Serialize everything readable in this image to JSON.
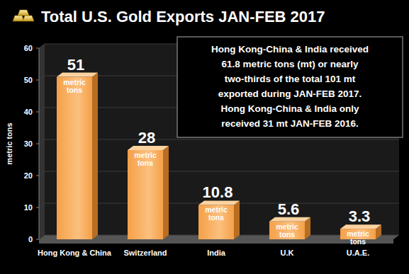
{
  "chart_data": {
    "type": "bar",
    "title": "Total U.S. Gold Exports JAN-FEB 2017",
    "y_label": "metric tons",
    "categories": [
      "Hong Kong & China",
      "Switzerland",
      "India",
      "U.K",
      "U.A.E."
    ],
    "values": [
      51,
      28,
      10.8,
      5.6,
      3.3
    ],
    "data_label_unit": "metric tons",
    "color": "#f5a048",
    "ylim": [
      0,
      60
    ],
    "yticks": [
      0,
      10,
      20,
      30,
      40,
      50,
      60
    ],
    "grid": true,
    "data_labels": true,
    "annotations": [
      "Hong Kong-China & India received",
      "61.8 metric tons (mt) or nearly",
      "two-thirds of the total 101 mt",
      "exported during JAN-FEB 2017.",
      "Hong Kong-China & India only",
      "received 31 mt JAN-FEB 2016."
    ]
  }
}
